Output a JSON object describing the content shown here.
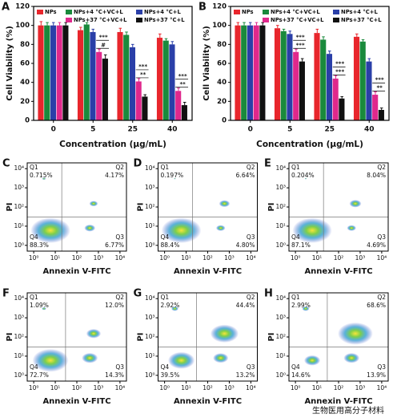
{
  "chart_data": [
    {
      "type": "bar",
      "panel": "A",
      "xlabel": "Concentration (μg/mL)",
      "ylabel": "Cell Viability (%)",
      "categories": [
        "0",
        "5",
        "25",
        "40"
      ],
      "ylim": [
        0,
        120
      ],
      "yticks": [
        0,
        20,
        40,
        60,
        80,
        100,
        120
      ],
      "series": [
        {
          "name": "NPs",
          "color": "#e8262c",
          "values": [
            100,
            95,
            93,
            87
          ],
          "errors": [
            4,
            3,
            4,
            4
          ]
        },
        {
          "name": "NPs+4 °C+VC+L",
          "color": "#1a8a3c",
          "values": [
            100,
            101,
            90,
            84
          ],
          "errors": [
            3,
            2,
            3,
            2
          ]
        },
        {
          "name": "NPs+4 °C+L",
          "color": "#2a3fa8",
          "values": [
            100,
            93,
            77,
            80
          ],
          "errors": [
            3,
            3,
            3,
            3
          ]
        },
        {
          "name": "NPs+37 °C+VC+L",
          "color": "#e0288c",
          "values": [
            100,
            72,
            41,
            31
          ],
          "errors": [
            3,
            3,
            3,
            3
          ]
        },
        {
          "name": "NPs+37 °C+L",
          "color": "#111111",
          "values": [
            100,
            65,
            25,
            16
          ],
          "errors": [
            3,
            4,
            2,
            3
          ]
        }
      ],
      "annotations": [
        [],
        [
          "***",
          "#"
        ],
        [
          "***",
          "**"
        ],
        [
          "***",
          "**"
        ]
      ]
    },
    {
      "type": "bar",
      "panel": "B",
      "xlabel": "Concentration (μg/mL)",
      "ylabel": "Cell Viability (%)",
      "categories": [
        "0",
        "5",
        "25",
        "40"
      ],
      "ylim": [
        0,
        120
      ],
      "yticks": [
        0,
        20,
        40,
        60,
        80,
        100,
        120
      ],
      "series": [
        {
          "name": "NPs",
          "color": "#e8262c",
          "values": [
            100,
            97,
            92,
            88
          ],
          "errors": [
            3,
            3,
            4,
            3
          ]
        },
        {
          "name": "NPs+4 °C+VC+L",
          "color": "#1a8a3c",
          "values": [
            100,
            94,
            85,
            83
          ],
          "errors": [
            3,
            2,
            3,
            2
          ]
        },
        {
          "name": "NPs+4 °C+L",
          "color": "#2a3fa8",
          "values": [
            100,
            91,
            70,
            62
          ],
          "errors": [
            3,
            3,
            3,
            3
          ]
        },
        {
          "name": "NPs+37 °C+VC+L",
          "color": "#e0288c",
          "values": [
            100,
            72,
            44,
            27
          ],
          "errors": [
            3,
            3,
            3,
            3
          ]
        },
        {
          "name": "NPs+37 °C+L",
          "color": "#111111",
          "values": [
            100,
            62,
            23,
            11
          ],
          "errors": [
            3,
            3,
            2,
            2
          ]
        }
      ],
      "annotations": [
        [],
        [
          "***",
          "***"
        ],
        [
          "***",
          "***"
        ],
        [
          "***",
          "**"
        ]
      ]
    },
    {
      "type": "quadrant",
      "panel": "C",
      "xlabel": "Annexin V-FITC",
      "ylabel": "PI",
      "xscale": "log",
      "yscale": "log",
      "xlim": [
        0.5,
        20000
      ],
      "ylim": [
        0.5,
        20000
      ],
      "gate": [
        20,
        30
      ],
      "xticks": [
        {
          "value": 1,
          "label": "10⁰"
        },
        {
          "value": 10,
          "label": "10¹"
        },
        {
          "value": 100,
          "label": "10²"
        },
        {
          "value": 1000,
          "label": "10³"
        },
        {
          "value": 10000,
          "label": "10⁴"
        }
      ],
      "yticks": [
        {
          "value": 1,
          "label": "10⁰"
        },
        {
          "value": 10,
          "label": "10¹"
        },
        {
          "value": 100,
          "label": "10²"
        },
        {
          "value": 1000,
          "label": "10³"
        },
        {
          "value": 10000,
          "label": "10⁴"
        }
      ],
      "quadrant_names": [
        "Q1",
        "Q2",
        "Q3",
        "Q4"
      ],
      "values": [
        0.715,
        4.17,
        6.77,
        88.3
      ],
      "value_labels": [
        "0.715%",
        "4.17%",
        "6.77%",
        "88.3%"
      ]
    },
    {
      "type": "quadrant",
      "panel": "D",
      "xlabel": "Annexin V-FITC",
      "ylabel": "PI",
      "xscale": "log",
      "yscale": "log",
      "xlim": [
        0.5,
        20000
      ],
      "ylim": [
        0.5,
        20000
      ],
      "gate": [
        20,
        30
      ],
      "xticks": [
        {
          "value": 1,
          "label": "10⁰"
        },
        {
          "value": 10,
          "label": "10¹"
        },
        {
          "value": 100,
          "label": "10²"
        },
        {
          "value": 1000,
          "label": "10³"
        },
        {
          "value": 10000,
          "label": "10⁴"
        }
      ],
      "yticks": [
        {
          "value": 1,
          "label": "10⁰"
        },
        {
          "value": 10,
          "label": "10¹"
        },
        {
          "value": 100,
          "label": "10²"
        },
        {
          "value": 1000,
          "label": "10³"
        },
        {
          "value": 10000,
          "label": "10⁴"
        }
      ],
      "quadrant_names": [
        "Q1",
        "Q2",
        "Q3",
        "Q4"
      ],
      "values": [
        0.197,
        6.64,
        4.8,
        88.4
      ],
      "value_labels": [
        "0.197%",
        "6.64%",
        "4.80%",
        "88.4%"
      ]
    },
    {
      "type": "quadrant",
      "panel": "E",
      "xlabel": "Annexin V-FITC",
      "ylabel": "PI",
      "xscale": "log",
      "yscale": "log",
      "xlim": [
        0.5,
        20000
      ],
      "ylim": [
        0.5,
        20000
      ],
      "gate": [
        20,
        30
      ],
      "xticks": [
        {
          "value": 1,
          "label": "10⁰"
        },
        {
          "value": 10,
          "label": "10¹"
        },
        {
          "value": 100,
          "label": "10²"
        },
        {
          "value": 1000,
          "label": "10³"
        },
        {
          "value": 10000,
          "label": "10⁴"
        }
      ],
      "yticks": [
        {
          "value": 1,
          "label": "10⁰"
        },
        {
          "value": 10,
          "label": "10¹"
        },
        {
          "value": 100,
          "label": "10²"
        },
        {
          "value": 1000,
          "label": "10³"
        },
        {
          "value": 10000,
          "label": "10⁴"
        }
      ],
      "quadrant_names": [
        "Q1",
        "Q2",
        "Q3",
        "Q4"
      ],
      "values": [
        0.204,
        8.04,
        4.69,
        87.1
      ],
      "value_labels": [
        "0.204%",
        "8.04%",
        "4.69%",
        "87.1%"
      ]
    },
    {
      "type": "quadrant",
      "panel": "F",
      "xlabel": "Annexin V-FITC",
      "ylabel": "PI",
      "xscale": "log",
      "yscale": "log",
      "xlim": [
        0.5,
        20000
      ],
      "ylim": [
        0.5,
        20000
      ],
      "gate": [
        30,
        30
      ],
      "xticks": [
        {
          "value": 1,
          "label": "10⁰"
        },
        {
          "value": 10,
          "label": "10¹"
        },
        {
          "value": 100,
          "label": "10²"
        },
        {
          "value": 1000,
          "label": "10³"
        },
        {
          "value": 10000,
          "label": "10⁴"
        }
      ],
      "yticks": [
        {
          "value": 1,
          "label": "10⁰"
        },
        {
          "value": 10,
          "label": "10¹"
        },
        {
          "value": 100,
          "label": "10²"
        },
        {
          "value": 1000,
          "label": "10³"
        },
        {
          "value": 10000,
          "label": "10⁴"
        }
      ],
      "quadrant_names": [
        "Q1",
        "Q2",
        "Q3",
        "Q4"
      ],
      "values": [
        1.09,
        12.0,
        14.3,
        72.7
      ],
      "value_labels": [
        "1.09%",
        "12.0%",
        "14.3%",
        "72.7%"
      ]
    },
    {
      "type": "quadrant",
      "panel": "G",
      "xlabel": "Annexin V-FITC",
      "ylabel": "PI",
      "xscale": "log",
      "yscale": "log",
      "xlim": [
        0.5,
        20000
      ],
      "ylim": [
        0.5,
        20000
      ],
      "gate": [
        30,
        30
      ],
      "xticks": [
        {
          "value": 1,
          "label": "10⁰"
        },
        {
          "value": 10,
          "label": "10¹"
        },
        {
          "value": 100,
          "label": "10²"
        },
        {
          "value": 1000,
          "label": "10³"
        },
        {
          "value": 10000,
          "label": "10⁴"
        }
      ],
      "yticks": [
        {
          "value": 1,
          "label": "10⁰"
        },
        {
          "value": 10,
          "label": "10¹"
        },
        {
          "value": 100,
          "label": "10²"
        },
        {
          "value": 1000,
          "label": "10³"
        },
        {
          "value": 10000,
          "label": "10⁴"
        }
      ],
      "quadrant_names": [
        "Q1",
        "Q2",
        "Q3",
        "Q4"
      ],
      "values": [
        2.92,
        44.4,
        13.2,
        39.5
      ],
      "value_labels": [
        "2.92%",
        "44.4%",
        "13.2%",
        "39.5%"
      ]
    },
    {
      "type": "quadrant",
      "panel": "H",
      "xlabel": "Annexin V-FITC",
      "ylabel": "PI",
      "xscale": "log",
      "yscale": "log",
      "xlim": [
        0.5,
        20000
      ],
      "ylim": [
        0.5,
        20000
      ],
      "gate": [
        30,
        30
      ],
      "xticks": [
        {
          "value": 1,
          "label": "10⁰"
        },
        {
          "value": 10,
          "label": "10¹"
        },
        {
          "value": 100,
          "label": "10²"
        },
        {
          "value": 1000,
          "label": "10³"
        },
        {
          "value": 10000,
          "label": "10⁴"
        }
      ],
      "yticks": [
        {
          "value": 1,
          "label": "10⁰"
        },
        {
          "value": 10,
          "label": "10¹"
        },
        {
          "value": 100,
          "label": "10²"
        },
        {
          "value": 1000,
          "label": "10³"
        },
        {
          "value": 10000,
          "label": "10⁴"
        }
      ],
      "quadrant_names": [
        "Q1",
        "Q2",
        "Q3",
        "Q4"
      ],
      "values": [
        2.99,
        68.6,
        13.9,
        14.6
      ],
      "value_labels": [
        "2.99%",
        "68.6%",
        "13.9%",
        "14.6%"
      ]
    }
  ],
  "watermark": "生物医用高分子材料"
}
